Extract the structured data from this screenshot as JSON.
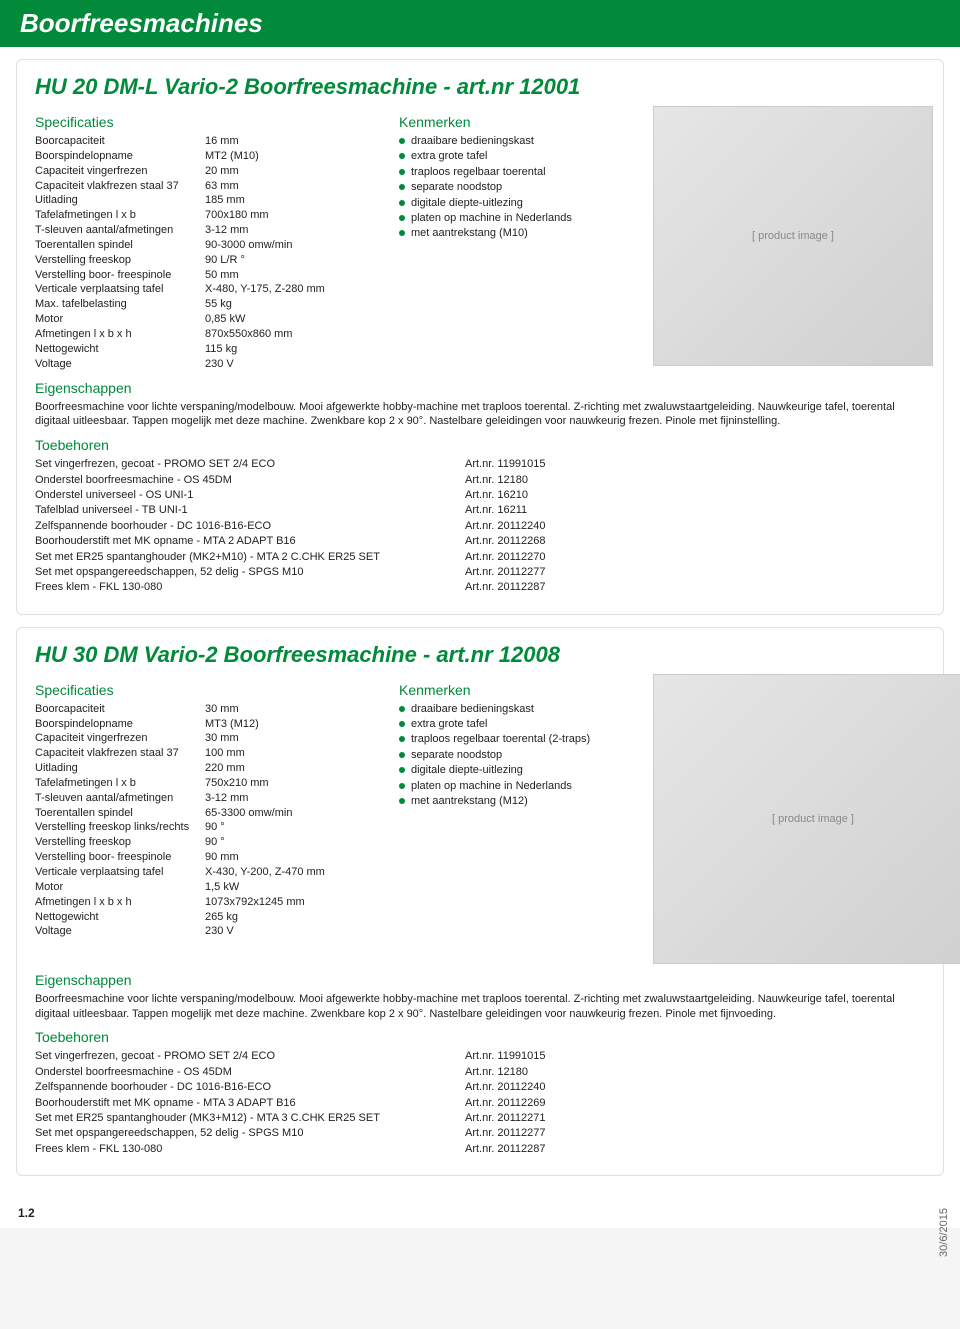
{
  "header": {
    "title": "Boorfreesmachines"
  },
  "footer": {
    "date": "30/6/2015",
    "pageNum": "1.2"
  },
  "labels": {
    "specs": "Specificaties",
    "features": "Kenmerken",
    "props": "Eigenschappen",
    "accessories": "Toebehoren",
    "artPrefix": "Art.nr. "
  },
  "products": [
    {
      "title": "HU 20 DM-L Vario-2 Boorfreesmachine - art.nr 12001",
      "imgAlt": "[ product image ]",
      "specs": [
        {
          "label": "Boorcapaciteit",
          "value": "16 mm"
        },
        {
          "label": "Boorspindelopname",
          "value": "MT2 (M10)"
        },
        {
          "label": "Capaciteit vingerfrezen",
          "value": "20 mm"
        },
        {
          "label": "Capaciteit vlakfrezen staal 37",
          "value": "63 mm"
        },
        {
          "label": "Uitlading",
          "value": "185 mm"
        },
        {
          "label": "Tafelafmetingen l x b",
          "value": "700x180 mm"
        },
        {
          "label": "T-sleuven aantal/afmetingen",
          "value": "3-12 mm"
        },
        {
          "label": "Toerentallen spindel",
          "value": "90-3000 omw/min"
        },
        {
          "label": "Verstelling freeskop",
          "value": "90 L/R °"
        },
        {
          "label": "Verstelling boor- freespinole",
          "value": "50 mm"
        },
        {
          "label": "Verticale verplaatsing tafel",
          "value": "X-480, Y-175, Z-280 mm"
        },
        {
          "label": "Max. tafelbelasting",
          "value": "55 kg"
        },
        {
          "label": "Motor",
          "value": "0,85 kW"
        },
        {
          "label": "Afmetingen l x b x h",
          "value": "870x550x860 mm"
        },
        {
          "label": "Nettogewicht",
          "value": "115 kg"
        },
        {
          "label": "Voltage",
          "value": "230 V"
        }
      ],
      "features": [
        "draaibare bedieningskast",
        "extra grote tafel",
        "traploos regelbaar toerental",
        "separate noodstop",
        "digitale diepte-uitlezing",
        "platen op machine in Nederlands",
        "met aantrekstang (M10)"
      ],
      "description": "Boorfreesmachine voor lichte verspaning/modelbouw. Mooi afgewerkte hobby-machine met traploos toerental. Z-richting met zwaluwstaartgeleiding. Nauwkeurige tafel, toerental digitaal uitleesbaar. Tappen mogelijk met deze machine. Zwenkbare kop 2 x 90°. Nastelbare geleidingen voor nauwkeurig frezen. Pinole met fijninstelling.",
      "accessories": [
        {
          "name": "Set vingerfrezen, gecoat  - PROMO SET 2/4 ECO",
          "art": "11991015"
        },
        {
          "name": "Onderstel boorfreesmachine  - OS 45DM",
          "art": "12180"
        },
        {
          "name": "Onderstel universeel  - OS UNI-1",
          "art": "16210"
        },
        {
          "name": "Tafelblad universeel  - TB UNI-1",
          "art": "16211"
        },
        {
          "name": "Zelfspannende boorhouder  - DC 1016-B16-ECO",
          "art": "20112240"
        },
        {
          "name": "Boorhouderstift met MK opname  - MTA 2 ADAPT B16",
          "art": "20112268"
        },
        {
          "name": "Set met ER25 spantanghouder (MK2+M10)  - MTA 2 C.CHK ER25 SET",
          "art": "20112270"
        },
        {
          "name": "Set met opspangereedschappen, 52 delig  - SPGS M10",
          "art": "20112277"
        },
        {
          "name": "Frees klem  - FKL 130-080",
          "art": "20112287"
        }
      ]
    },
    {
      "title": "HU 30 DM Vario-2 Boorfreesmachine - art.nr 12008",
      "imgAlt": "[ product image ]",
      "specs": [
        {
          "label": "Boorcapaciteit",
          "value": "30 mm"
        },
        {
          "label": "Boorspindelopname",
          "value": "MT3 (M12)"
        },
        {
          "label": "Capaciteit vingerfrezen",
          "value": "30 mm"
        },
        {
          "label": "Capaciteit vlakfrezen staal 37",
          "value": "100 mm"
        },
        {
          "label": "Uitlading",
          "value": "220 mm"
        },
        {
          "label": "Tafelafmetingen l x b",
          "value": "750x210 mm"
        },
        {
          "label": "T-sleuven aantal/afmetingen",
          "value": "3-12 mm"
        },
        {
          "label": "Toerentallen spindel",
          "value": "65-3300 omw/min"
        },
        {
          "label": "Verstelling freeskop links/rechts",
          "value": "90 °"
        },
        {
          "label": "Verstelling freeskop",
          "value": "90 °"
        },
        {
          "label": "Verstelling boor- freespinole",
          "value": "90 mm"
        },
        {
          "label": "Verticale verplaatsing tafel",
          "value": "X-430, Y-200, Z-470 mm"
        },
        {
          "label": "Motor",
          "value": "1,5 kW"
        },
        {
          "label": "Afmetingen l x b x h",
          "value": "1073x792x1245 mm"
        },
        {
          "label": "Nettogewicht",
          "value": "265 kg"
        },
        {
          "label": "Voltage",
          "value": "230 V"
        }
      ],
      "features": [
        "draaibare bedieningskast",
        "extra grote tafel",
        "traploos regelbaar toerental (2-traps)",
        "separate noodstop",
        "digitale diepte-uitlezing",
        "platen op machine in Nederlands",
        "met aantrekstang (M12)"
      ],
      "description": "Boorfreesmachine voor lichte verspaning/modelbouw. Mooi afgewerkte hobby-machine met traploos toerental. Z-richting met zwaluwstaartgeleiding. Nauwkeurige tafel, toerental digitaal uitleesbaar. Tappen mogelijk met deze machine. Zwenkbare kop 2 x 90°. Nastelbare geleidingen voor nauwkeurig frezen. Pinole met fijnvoeding.",
      "accessories": [
        {
          "name": "Set vingerfrezen, gecoat  - PROMO SET 2/4 ECO",
          "art": "11991015"
        },
        {
          "name": "Onderstel boorfreesmachine  - OS 45DM",
          "art": "12180"
        },
        {
          "name": "Zelfspannende boorhouder  - DC 1016-B16-ECO",
          "art": "20112240"
        },
        {
          "name": "Boorhouderstift met MK opname  - MTA 3 ADAPT B16",
          "art": "20112269"
        },
        {
          "name": "Set met ER25 spantanghouder (MK3+M12)  - MTA 3 C.CHK ER25 SET",
          "art": "20112271"
        },
        {
          "name": "Set met opspangereedschappen, 52 delig  - SPGS M10",
          "art": "20112277"
        },
        {
          "name": "Frees klem  - FKL 130-080",
          "art": "20112287"
        }
      ]
    }
  ]
}
